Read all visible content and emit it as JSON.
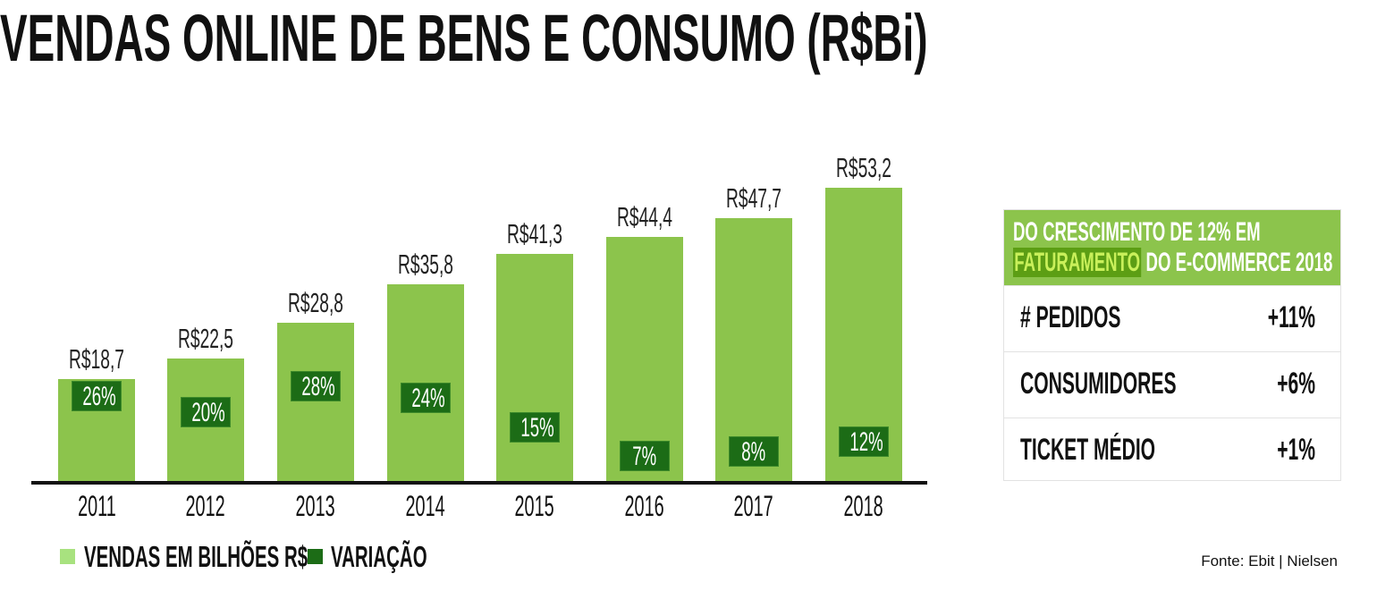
{
  "chart_data": {
    "type": "bar",
    "title": "VENDAS ONLINE DE BENS E CONSUMO (R$Bi)",
    "categories": [
      "2011",
      "2012",
      "2013",
      "2014",
      "2015",
      "2016",
      "2017",
      "2018"
    ],
    "series": [
      {
        "name": "VENDAS EM BILHÕES R$",
        "values": [
          18.7,
          22.5,
          28.8,
          35.8,
          41.3,
          44.4,
          47.7,
          53.2
        ],
        "labels": [
          "R$18,7",
          "R$22,5",
          "R$28,8",
          "R$35,8",
          "R$41,3",
          "R$44,4",
          "R$47,7",
          "R$53,2"
        ],
        "color": "#8cc44c",
        "legend_color": "#a8e27f"
      },
      {
        "name": "VARIAÇÃO",
        "values": [
          26,
          20,
          28,
          24,
          15,
          7,
          8,
          12
        ],
        "labels": [
          "26%",
          "20%",
          "28%",
          "24%",
          "15%",
          "7%",
          "8%",
          "12%"
        ],
        "color": "#1c6c16"
      }
    ],
    "xlabel": "",
    "ylabel": "",
    "grid": false,
    "legend": "bottom-left"
  },
  "panel": {
    "heading_line1": "DO CRESCIMENTO DE 12% EM",
    "heading_highlight": "FATURAMENTO",
    "heading_line2_rest": "DO E-COMMERCE 2018",
    "rows": [
      {
        "label": "# PEDIDOS",
        "value": "+11%"
      },
      {
        "label": "CONSUMIDORES",
        "value": "+6%"
      },
      {
        "label": "TICKET MÉDIO",
        "value": "+1%"
      }
    ]
  },
  "source": "Fonte: Ebit | Nielsen"
}
